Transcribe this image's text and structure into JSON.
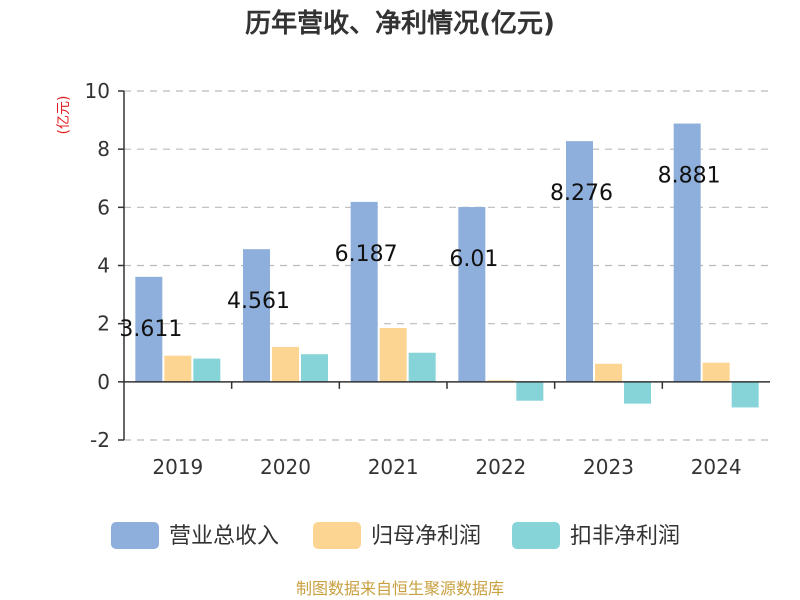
{
  "title": "历年营收、净利情况(亿元)",
  "unit_label": "(亿元)",
  "source": "制图数据来自恒生聚源数据库",
  "colors": {
    "revenue": "#8eaedb",
    "net_profit": "#fdd592",
    "net_profit_ex": "#86d4d8",
    "axis": "#333333",
    "grid": "#bbbbbb"
  },
  "chart_data": {
    "type": "bar",
    "title": "历年营收、净利情况(亿元)",
    "ylabel": "(亿元)",
    "xlabel": "",
    "ylim": [
      -2,
      10
    ],
    "yticks": [
      -2,
      0,
      2,
      4,
      6,
      8,
      10
    ],
    "grid": true,
    "legend_position": "bottom",
    "categories": [
      "2019",
      "2020",
      "2021",
      "2022",
      "2023",
      "2024"
    ],
    "series": [
      {
        "name": "营业总收入",
        "values": [
          3.611,
          4.561,
          6.187,
          6.01,
          8.276,
          8.881
        ],
        "labels": [
          "3.611",
          "4.561",
          "6.187",
          "6.01",
          "8.276",
          "8.881"
        ]
      },
      {
        "name": "归母净利润",
        "values": [
          0.9,
          1.2,
          1.85,
          0.05,
          0.62,
          0.66
        ]
      },
      {
        "name": "扣非净利润",
        "values": [
          0.8,
          0.95,
          1.0,
          -0.65,
          -0.75,
          -0.88
        ]
      }
    ]
  }
}
